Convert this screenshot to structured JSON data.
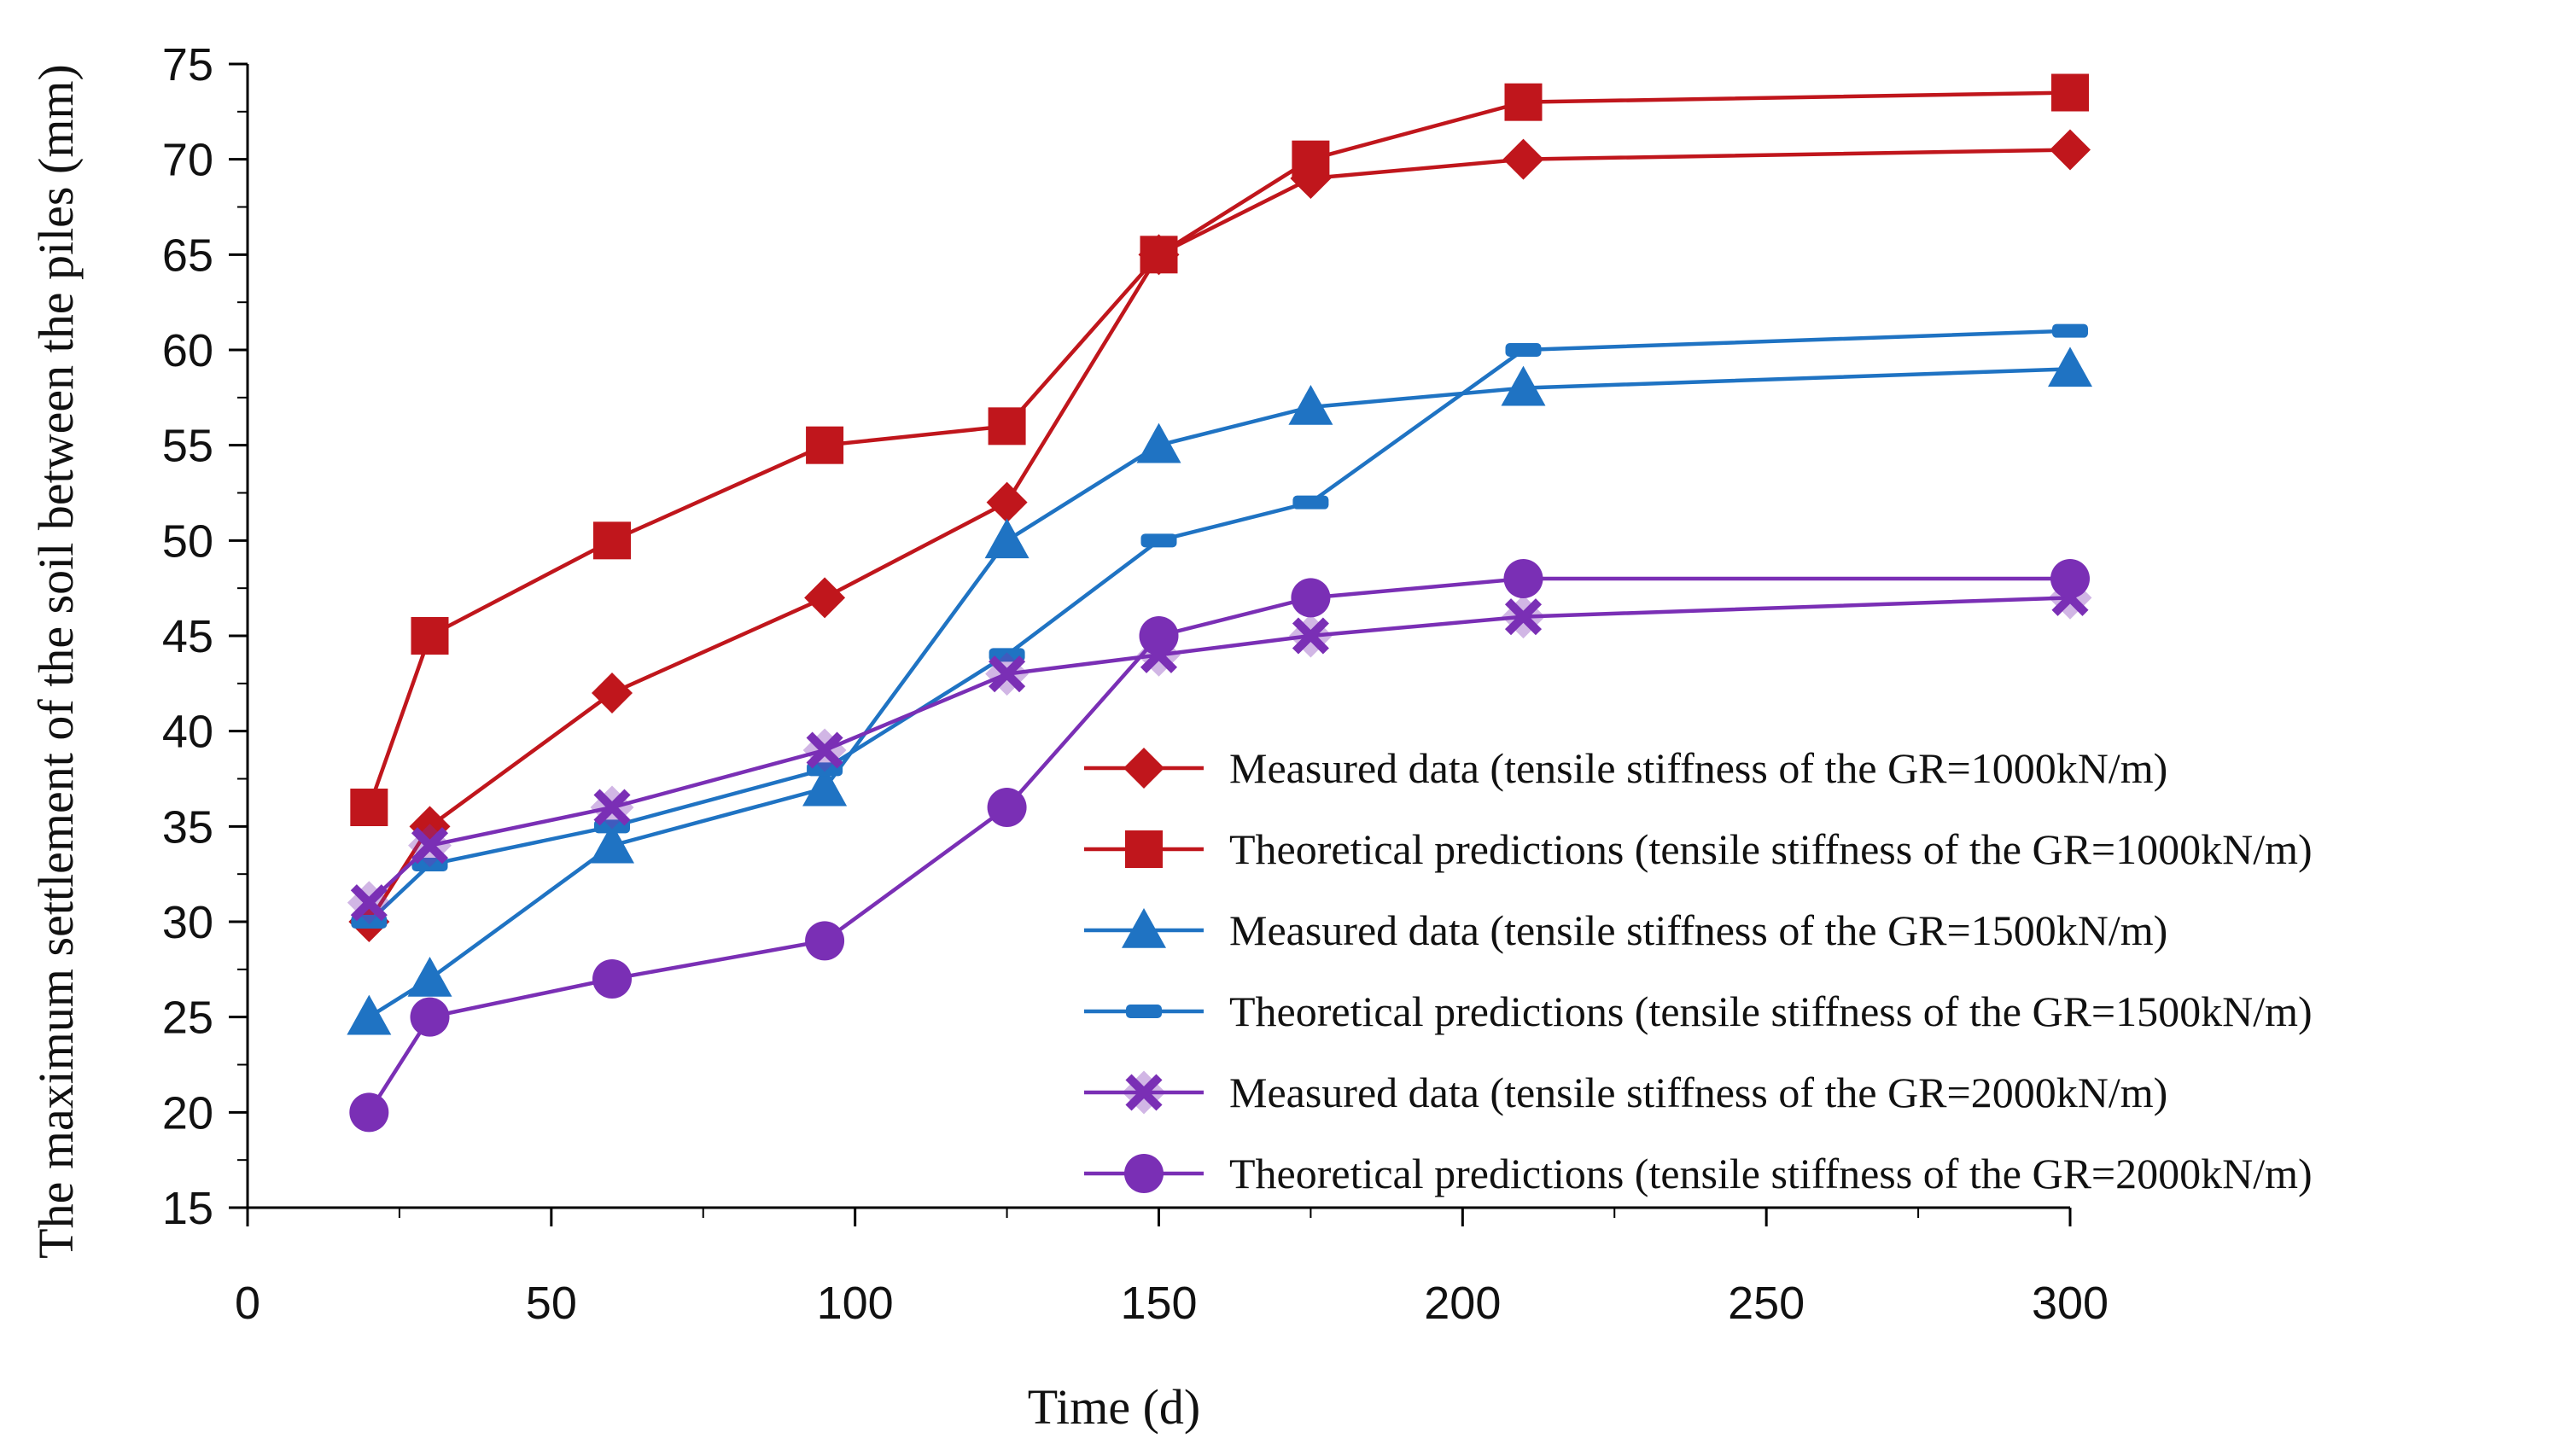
{
  "chart_data": {
    "type": "line",
    "title": "",
    "xlabel": "Time (d)",
    "ylabel": "The maximum settlement of the soil between the piles (mm)",
    "xlim": [
      0,
      300
    ],
    "ylim": [
      15,
      75
    ],
    "xticks": [
      0,
      50,
      100,
      150,
      200,
      250,
      300
    ],
    "yticks": [
      15,
      20,
      25,
      30,
      35,
      40,
      45,
      50,
      55,
      60,
      65,
      70,
      75
    ],
    "x": [
      20,
      30,
      60,
      95,
      125,
      150,
      175,
      210,
      300
    ],
    "grid": false,
    "legend_position": "bottom-right",
    "series": [
      {
        "name": "Measured data (tensile stiffness of the GR=1000kN/m)",
        "color": "#c0161c",
        "marker": "diamond",
        "values": [
          30,
          35,
          42,
          47,
          52,
          65,
          69,
          70,
          70.5
        ]
      },
      {
        "name": "Theoretical predictions (tensile stiffness of the GR=1000kN/m)",
        "color": "#c0161c",
        "marker": "square",
        "values": [
          36,
          45,
          50,
          55,
          56,
          65,
          70,
          73,
          73.5
        ]
      },
      {
        "name": "Measured data (tensile stiffness of the GR=1500kN/m)",
        "color": "#1f73c3",
        "marker": "triangle",
        "values": [
          25,
          27,
          34,
          37,
          50,
          55,
          57,
          58,
          59
        ]
      },
      {
        "name": "Theoretical predictions (tensile stiffness of the GR=1500kN/m)",
        "color": "#1f73c3",
        "marker": "dash",
        "values": [
          30,
          33,
          35,
          38,
          44,
          50,
          52,
          60,
          61
        ]
      },
      {
        "name": "Measured data (tensile stiffness of the GR=2000kN/m)",
        "color": "#7a2fb5",
        "marker": "cross",
        "values": [
          31,
          34,
          36,
          39,
          43,
          44,
          45,
          46,
          47
        ]
      },
      {
        "name": "Theoretical predictions (tensile stiffness of the GR=2000kN/m)",
        "color": "#7a2fb5",
        "marker": "circle",
        "values": [
          20,
          25,
          27,
          29,
          36,
          45,
          47,
          48,
          48
        ]
      }
    ]
  }
}
